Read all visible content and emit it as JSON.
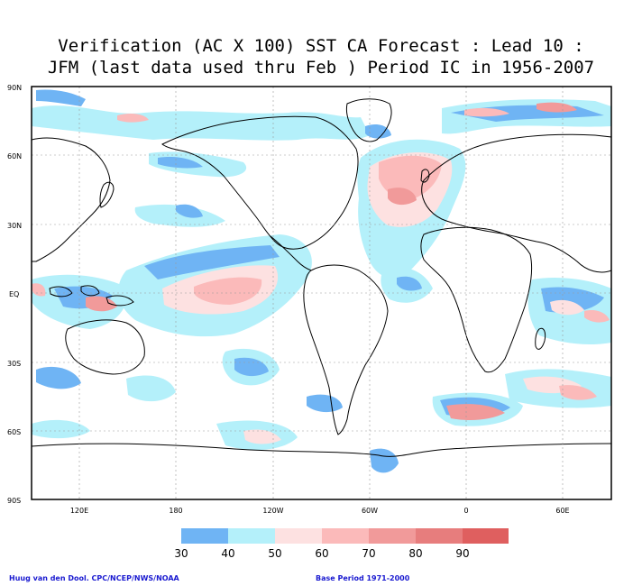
{
  "title": {
    "line1": "Verification (AC X 100) SST CA Forecast : Lead 10 :",
    "line2": "JFM (last data used thru Feb ) Period IC in 1956-2007"
  },
  "axes": {
    "lat_labels": [
      "90N",
      "60N",
      "30N",
      "EQ",
      "30S",
      "60S",
      "90S"
    ],
    "lon_labels": [
      "120E",
      "180",
      "120W",
      "60W",
      "0",
      "60E"
    ]
  },
  "legend": {
    "levels": [
      "30",
      "40",
      "50",
      "60",
      "70",
      "80",
      "90"
    ],
    "colors": [
      "#6fb4f4",
      "#b4f0fa",
      "#fde1e1",
      "#fbbaba",
      "#f19a9a",
      "#e77d7d",
      "#df5f5f"
    ]
  },
  "credits": {
    "left": "Huug van den Dool. CPC/NCEP/NWS/NOAA",
    "right": "Base Period 1971-2000"
  },
  "colors": {
    "land_outline": "#000000",
    "grid": "#9a9a9a",
    "frame": "#000000"
  }
}
